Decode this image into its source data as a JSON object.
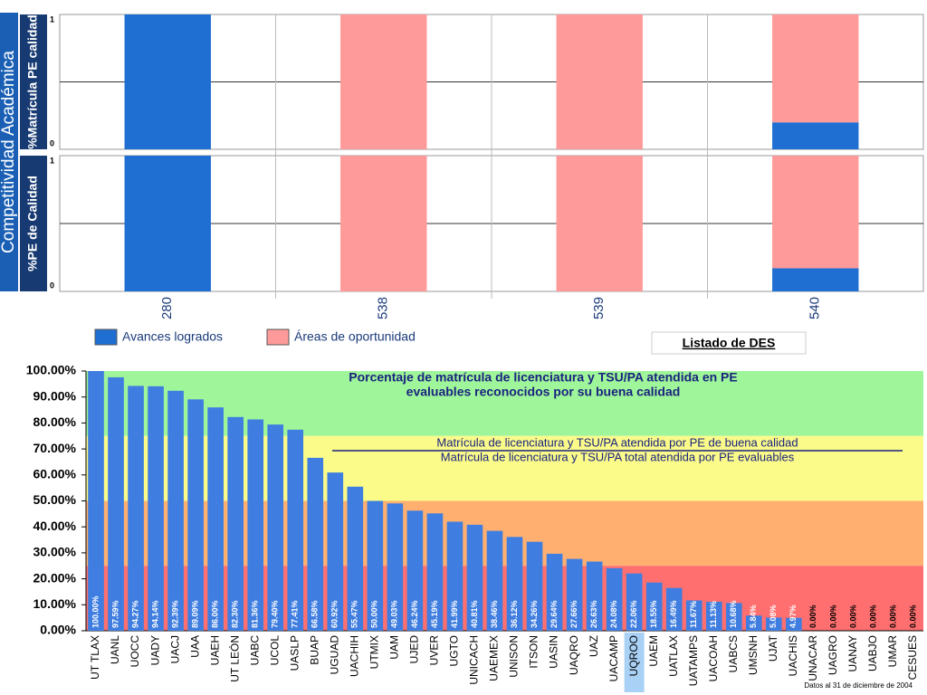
{
  "chart_data": [
    {
      "type": "stacked_bar",
      "title": "Competitividad Académica",
      "categories": [
        "280",
        "538",
        "539",
        "540"
      ],
      "legend_link": "Listado de DES",
      "panels": [
        {
          "ylabel": "%Matrícula PE calidad",
          "ylim": [
            0,
            1
          ],
          "yticks": [
            0,
            1
          ],
          "ygrid": [
            0.5
          ],
          "series": [
            {
              "name": "Avances logrados",
              "color": "#1f6fd3",
              "values": [
                1,
                0,
                0,
                0.2
              ]
            },
            {
              "name": "Áreas de oportunidad",
              "color": "#ff9a9a",
              "values": [
                0,
                1,
                1,
                0.8
              ]
            }
          ]
        },
        {
          "ylabel": "%PE de Calidad",
          "ylim": [
            0,
            1
          ],
          "yticks": [
            0,
            1
          ],
          "ygrid": [
            0.5
          ],
          "series": [
            {
              "name": "Avances logrados",
              "color": "#1f6fd3",
              "values": [
                1,
                0,
                0,
                0.17
              ]
            },
            {
              "name": "Áreas de oportunidad",
              "color": "#ff9a9a",
              "values": [
                0,
                1,
                1,
                0.83
              ]
            }
          ]
        }
      ]
    },
    {
      "type": "bar",
      "title": [
        "Porcentaje de matrícula de licenciatura y TSU/PA atendida en PE",
        "evaluables reconocidos por su buena calidad"
      ],
      "numerator": "Matrícula de licenciatura y TSU/PA atendida por PE de buena calidad",
      "denominator": "Matrícula de licenciatura y TSU/PA total atendida por PE evaluables",
      "footnote": "Datos al 31 de diciembre de 2004",
      "color": "#3f7ee0",
      "highlight": "UQROO",
      "bands": [
        {
          "from": 75,
          "to": 100,
          "color": "#9ff59a"
        },
        {
          "from": 50,
          "to": 75,
          "color": "#fbfb8a"
        },
        {
          "from": 25,
          "to": 50,
          "color": "#ffb070"
        },
        {
          "from": 0,
          "to": 25,
          "color": "#ff6f6f"
        }
      ],
      "ylim": [
        0,
        100
      ],
      "yticks": [
        {
          "value": 0,
          "label": "0.00%"
        },
        {
          "value": 10,
          "label": "10.00%"
        },
        {
          "value": 20,
          "label": "20.00%"
        },
        {
          "value": 30,
          "label": "30.00%"
        },
        {
          "value": 40,
          "label": "40.00%"
        },
        {
          "value": 50,
          "label": "50.00%"
        },
        {
          "value": 60,
          "label": "60.00%"
        },
        {
          "value": 70,
          "label": "70.00%"
        },
        {
          "value": 80,
          "label": "80.00%"
        },
        {
          "value": 90,
          "label": "90.00%"
        },
        {
          "value": 100,
          "label": "100.00%"
        }
      ],
      "categories": [
        "UT TLAX",
        "UANL",
        "UOCC",
        "UADY",
        "UACJ",
        "UAA",
        "UAEH",
        "UT LEÓN",
        "UABC",
        "UCOL",
        "UASLP",
        "BUAP",
        "UGUAD",
        "UACHIH",
        "UTMIX",
        "UAM",
        "UJED",
        "UVER",
        "UGTO",
        "UNICACH",
        "UAEMEX",
        "UNISON",
        "ITSON",
        "UASIN",
        "UAQRO",
        "UAZ",
        "UACAMP",
        "UQROO",
        "UAEM",
        "UATLAX",
        "UATAMPS",
        "UACOAH",
        "UABCS",
        "UMSNH",
        "UJAT",
        "UACHIS",
        "UNACAR",
        "UAGRO",
        "UANAY",
        "UABJO",
        "UMAR",
        "CESUES"
      ],
      "values": [
        100,
        97.59,
        94.27,
        94.14,
        92.39,
        89.09,
        86,
        82.3,
        81.36,
        79.4,
        77.41,
        66.58,
        60.92,
        55.47,
        50,
        49.03,
        46.24,
        45.19,
        41.99,
        40.81,
        38.46,
        36.12,
        34.26,
        29.64,
        27.66,
        26.63,
        24.08,
        22.06,
        18.55,
        16.49,
        11.67,
        11.13,
        10.68,
        5.84,
        5.08,
        4.97,
        0,
        0,
        0,
        0,
        0,
        0
      ],
      "value_labels": [
        "100.00%",
        "97.59%",
        "94.27%",
        "94.14%",
        "92.39%",
        "89.09%",
        "86.00%",
        "82.30%",
        "81.36%",
        "79.40%",
        "77.41%",
        "66.58%",
        "60.92%",
        "55.47%",
        "50.00%",
        "49.03%",
        "46.24%",
        "45.19%",
        "41.99%",
        "40.81%",
        "38.46%",
        "36.12%",
        "34.26%",
        "29.64%",
        "27.66%",
        "26.63%",
        "24.08%",
        "22.06%",
        "18.55%",
        "16.49%",
        "11.67%",
        "11.13%",
        "10.68%",
        "5.84%",
        "5.08%",
        "4.97%",
        "0.00%",
        "0.00%",
        "0.00%",
        "0.00%",
        "0.00%",
        "0.00%"
      ]
    }
  ]
}
